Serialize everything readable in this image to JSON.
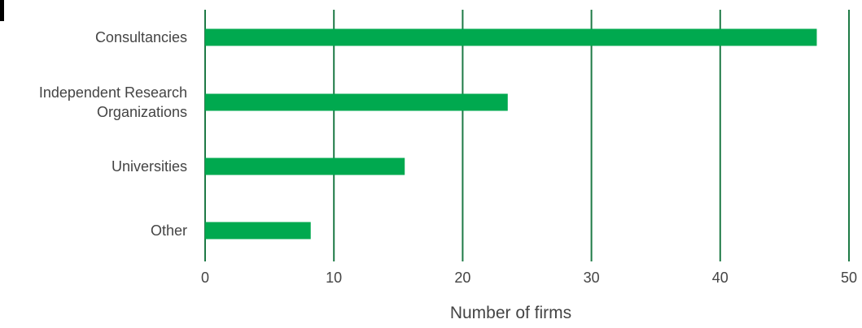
{
  "chart_data": {
    "type": "bar",
    "orientation": "horizontal",
    "title": "",
    "xlabel": "Number of firms",
    "ylabel": "",
    "categories": [
      [
        "Consultancies"
      ],
      [
        "Independent Research",
        "Organizations"
      ],
      [
        "Universities"
      ],
      [
        "Other"
      ]
    ],
    "values": [
      47.5,
      23.5,
      15.5,
      8.2
    ],
    "xlim": [
      0,
      50
    ],
    "x_ticks": [
      0,
      10,
      20,
      30,
      40,
      50
    ],
    "grid": "vertical",
    "legend": "none",
    "colors": {
      "bar": "#00a94f",
      "grid": "#1e7a46",
      "text": "#444444"
    }
  }
}
